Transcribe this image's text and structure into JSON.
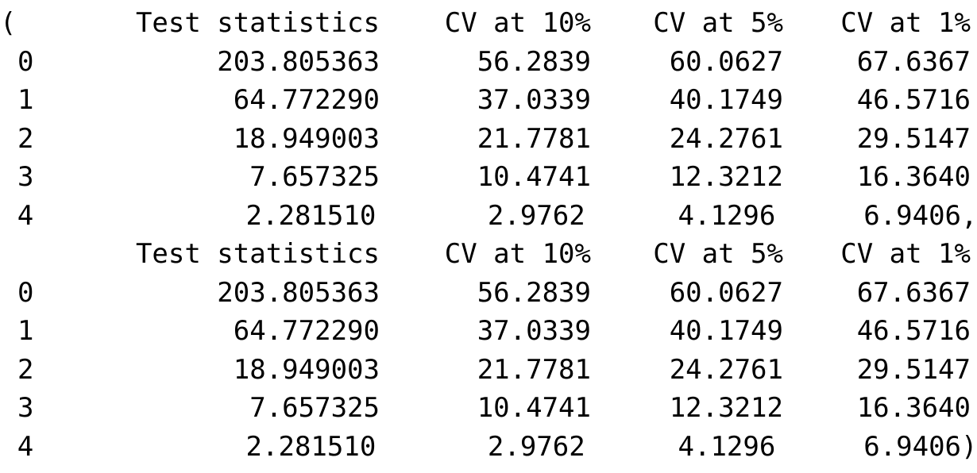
{
  "output": {
    "open_paren": "(",
    "close_paren": ")",
    "separator": ",",
    "tables": [
      {
        "columns": [
          "Test statistics",
          "CV at 10%",
          "CV at 5%",
          "CV at 1%"
        ],
        "rows": [
          {
            "index": "0",
            "ts": "203.805363",
            "cv10": "56.2839",
            "cv5": "60.0627",
            "cv1": "67.6367"
          },
          {
            "index": "1",
            "ts": "64.772290",
            "cv10": "37.0339",
            "cv5": "40.1749",
            "cv1": "46.5716"
          },
          {
            "index": "2",
            "ts": "18.949003",
            "cv10": "21.7781",
            "cv5": "24.2761",
            "cv1": "29.5147"
          },
          {
            "index": "3",
            "ts": "7.657325",
            "cv10": "10.4741",
            "cv5": "12.3212",
            "cv1": "16.3640"
          },
          {
            "index": "4",
            "ts": "2.281510",
            "cv10": "2.9762",
            "cv5": "4.1296",
            "cv1": "6.9406"
          }
        ]
      },
      {
        "columns": [
          "Test statistics",
          "CV at 10%",
          "CV at 5%",
          "CV at 1%"
        ],
        "rows": [
          {
            "index": "0",
            "ts": "203.805363",
            "cv10": "56.2839",
            "cv5": "60.0627",
            "cv1": "67.6367"
          },
          {
            "index": "1",
            "ts": "64.772290",
            "cv10": "37.0339",
            "cv5": "40.1749",
            "cv1": "46.5716"
          },
          {
            "index": "2",
            "ts": "18.949003",
            "cv10": "21.7781",
            "cv5": "24.2761",
            "cv1": "29.5147"
          },
          {
            "index": "3",
            "ts": "7.657325",
            "cv10": "10.4741",
            "cv5": "12.3212",
            "cv1": "16.3640"
          },
          {
            "index": "4",
            "ts": "2.281510",
            "cv10": "2.9762",
            "cv5": "4.1296",
            "cv1": "6.9406"
          }
        ]
      }
    ]
  }
}
